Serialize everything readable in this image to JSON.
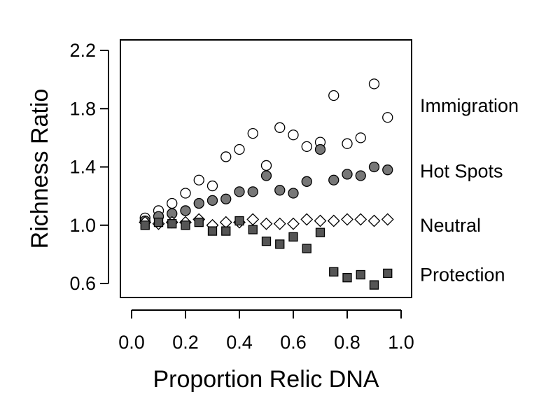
{
  "chart_data": {
    "type": "scatter",
    "title": "",
    "xlabel": "Proportion Relic DNA",
    "ylabel": "Richness Ratio",
    "xlim": [
      0.0,
      1.0
    ],
    "ylim": [
      0.5,
      2.3
    ],
    "x_ticks": [
      "0.0",
      "0.2",
      "0.4",
      "0.6",
      "0.8",
      "1.0"
    ],
    "y_ticks": [
      "0.6",
      "1.0",
      "1.4",
      "1.8",
      "2.2"
    ],
    "grid": false,
    "legend": "labels at right of plot",
    "series": [
      {
        "name": "Immigration",
        "label_y": 1.82,
        "marker": "circle",
        "fill": "#ffffff",
        "x": [
          0.05,
          0.1,
          0.15,
          0.2,
          0.25,
          0.3,
          0.35,
          0.4,
          0.45,
          0.5,
          0.55,
          0.6,
          0.65,
          0.7,
          0.75,
          0.8,
          0.85,
          0.9,
          0.95
        ],
        "y": [
          1.05,
          1.1,
          1.15,
          1.22,
          1.31,
          1.27,
          1.47,
          1.52,
          1.63,
          1.41,
          1.67,
          1.62,
          1.54,
          1.57,
          1.89,
          1.56,
          1.6,
          1.97,
          1.74
        ]
      },
      {
        "name": "Hot Spots",
        "label_y": 1.37,
        "marker": "circle",
        "fill": "#777777",
        "x": [
          0.05,
          0.1,
          0.15,
          0.2,
          0.25,
          0.3,
          0.35,
          0.4,
          0.45,
          0.5,
          0.55,
          0.6,
          0.65,
          0.7,
          0.75,
          0.8,
          0.85,
          0.9,
          0.95
        ],
        "y": [
          1.03,
          1.06,
          1.08,
          1.1,
          1.15,
          1.17,
          1.18,
          1.23,
          1.23,
          1.34,
          1.24,
          1.22,
          1.3,
          1.52,
          1.31,
          1.35,
          1.34,
          1.4,
          1.38
        ]
      },
      {
        "name": "Neutral",
        "label_y": 1.0,
        "marker": "diamond",
        "fill": "#ffffff",
        "x": [
          0.05,
          0.1,
          0.15,
          0.2,
          0.25,
          0.3,
          0.35,
          0.4,
          0.45,
          0.5,
          0.55,
          0.6,
          0.65,
          0.7,
          0.75,
          0.8,
          0.85,
          0.9,
          0.95
        ],
        "y": [
          1.02,
          1.01,
          1.02,
          1.02,
          1.04,
          1.0,
          1.02,
          1.02,
          1.04,
          1.01,
          1.01,
          1.01,
          1.04,
          1.03,
          1.03,
          1.04,
          1.04,
          1.03,
          1.04
        ]
      },
      {
        "name": "Protection",
        "label_y": 0.66,
        "marker": "square",
        "fill": "#555555",
        "x": [
          0.05,
          0.1,
          0.15,
          0.2,
          0.25,
          0.3,
          0.35,
          0.4,
          0.45,
          0.5,
          0.55,
          0.6,
          0.65,
          0.7,
          0.75,
          0.8,
          0.85,
          0.9,
          0.95
        ],
        "y": [
          1.0,
          1.02,
          1.01,
          1.0,
          1.02,
          0.96,
          0.96,
          1.03,
          0.97,
          0.89,
          0.87,
          0.92,
          0.84,
          0.95,
          0.68,
          0.64,
          0.66,
          0.59,
          0.67
        ]
      }
    ]
  }
}
